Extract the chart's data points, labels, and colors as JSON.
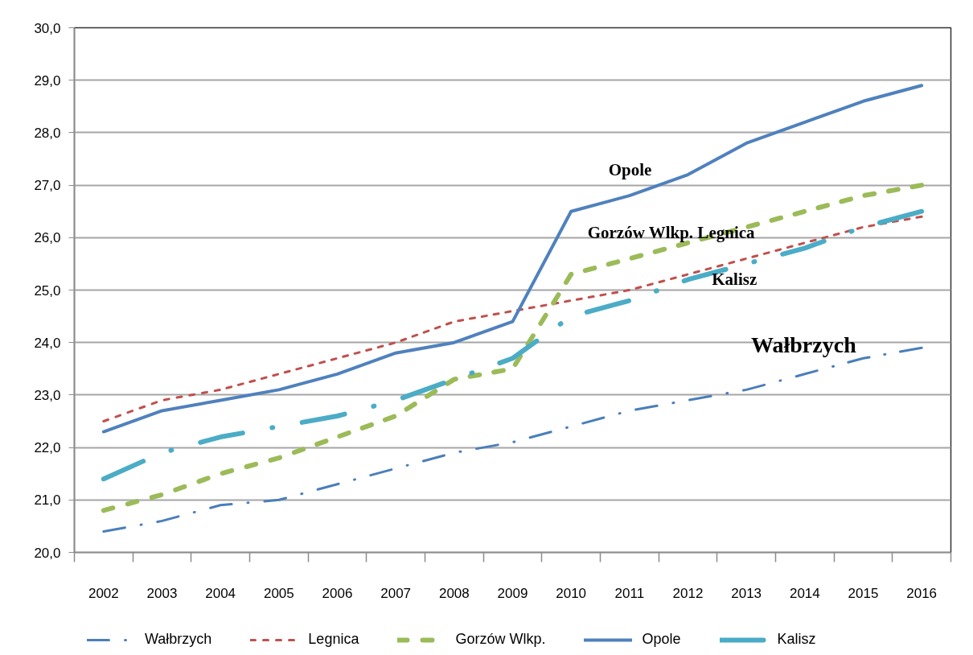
{
  "chart_data": {
    "type": "line",
    "categories": [
      "2002",
      "2003",
      "2004",
      "2005",
      "2006",
      "2007",
      "2008",
      "2009",
      "2010",
      "2011",
      "2012",
      "2013",
      "2014",
      "2015",
      "2016"
    ],
    "ylim": [
      20,
      30
    ],
    "yticks": [
      {
        "value": 20,
        "label": "20,0"
      },
      {
        "value": 21,
        "label": "21,0"
      },
      {
        "value": 22,
        "label": "22,0"
      },
      {
        "value": 23,
        "label": "23,0"
      },
      {
        "value": 24,
        "label": "24,0"
      },
      {
        "value": 25,
        "label": "25,0"
      },
      {
        "value": 26,
        "label": "26,0"
      },
      {
        "value": 27,
        "label": "27,0"
      },
      {
        "value": 28,
        "label": "28,0"
      },
      {
        "value": 29,
        "label": "29,0"
      },
      {
        "value": 30,
        "label": "30,0"
      }
    ],
    "grid": "y",
    "legend": "bottom",
    "series": [
      {
        "name": "Wałbrzych",
        "color": "#4a7ebb",
        "line_style": "dashdot",
        "values": [
          20.4,
          20.6,
          20.9,
          21.0,
          21.3,
          21.6,
          21.9,
          22.1,
          22.4,
          22.7,
          22.9,
          23.1,
          23.4,
          23.7,
          23.9
        ]
      },
      {
        "name": "Legnica",
        "color": "#c0504d",
        "line_style": "dashed",
        "values": [
          22.5,
          22.9,
          23.1,
          23.4,
          23.7,
          24.0,
          24.4,
          24.6,
          24.8,
          25.0,
          25.3,
          25.6,
          25.9,
          26.2,
          26.4
        ]
      },
      {
        "name": "Gorzów Wlkp.",
        "color": "#9bbb59",
        "line_style": "dashed",
        "values": [
          20.8,
          21.1,
          21.5,
          21.8,
          22.2,
          22.6,
          23.3,
          23.5,
          25.3,
          25.6,
          25.9,
          26.2,
          26.5,
          26.8,
          27.0
        ]
      },
      {
        "name": "Opole",
        "color": "#4f81bd",
        "line_style": "solid",
        "values": [
          22.3,
          22.7,
          22.9,
          23.1,
          23.4,
          23.8,
          24.0,
          24.4,
          26.5,
          26.8,
          27.2,
          27.8,
          28.2,
          28.6,
          28.9
        ]
      },
      {
        "name": "Kalisz",
        "color": "#4bacc6",
        "line_style": "dashdot",
        "values": [
          21.4,
          21.9,
          22.2,
          22.4,
          22.6,
          22.9,
          23.3,
          23.7,
          24.5,
          24.8,
          25.2,
          25.5,
          25.8,
          26.2,
          26.5
        ]
      }
    ],
    "annotations": [
      "Opole",
      "Gorzów Wlkp. Legnica",
      "Kalisz",
      "Wałbrzych"
    ]
  }
}
